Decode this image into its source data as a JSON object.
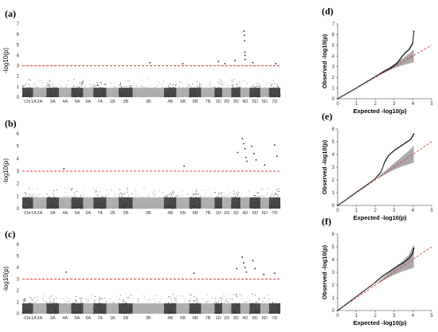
{
  "chart_data": [
    {
      "id": "a",
      "type": "scatter",
      "subtype": "manhattan",
      "panel_letter": "(a)",
      "ylabel": "-log10(p)",
      "ylim": [
        0,
        7
      ],
      "yticks": [
        0,
        1,
        2,
        3,
        4,
        5,
        6,
        7
      ],
      "threshold": 3,
      "threshold_color": "#e23a3a",
      "chromosomes": [
        "1A",
        "2A",
        "3A",
        "4A",
        "5A",
        "6A",
        "7A",
        "1B",
        "2B",
        "3B",
        "4B",
        "5B",
        "6B",
        "7B",
        "1D",
        "2D",
        "3D",
        "4D",
        "5D",
        "6D",
        "7D"
      ],
      "chromosome_label_prefix": "Chr",
      "color_dark": "#3a3a3a",
      "color_light": "#a9a9a9",
      "notable_points": [
        {
          "chr": "3B",
          "pos": 0.55,
          "value": 3.3
        },
        {
          "chr": "5B",
          "pos": 0.5,
          "value": 3.2
        },
        {
          "chr": "1D",
          "pos": 0.5,
          "value": 3.4
        },
        {
          "chr": "2D",
          "pos": 0.3,
          "value": 3.2
        },
        {
          "chr": "3D",
          "pos": 0.4,
          "value": 3.5
        },
        {
          "chr": "4D",
          "pos": 0.4,
          "value": 6.3
        },
        {
          "chr": "4D",
          "pos": 0.42,
          "value": 5.9
        },
        {
          "chr": "4D",
          "pos": 0.45,
          "value": 5.4
        },
        {
          "chr": "4D",
          "pos": 0.48,
          "value": 4.3
        },
        {
          "chr": "4D",
          "pos": 0.5,
          "value": 4.0
        },
        {
          "chr": "4D",
          "pos": 0.52,
          "value": 3.6
        },
        {
          "chr": "5D",
          "pos": 0.3,
          "value": 3.3
        },
        {
          "chr": "7D",
          "pos": 0.6,
          "value": 3.2
        }
      ]
    },
    {
      "id": "b",
      "type": "scatter",
      "subtype": "manhattan",
      "panel_letter": "(b)",
      "ylabel": "-log10(p)",
      "ylim": [
        0,
        6
      ],
      "yticks": [
        0,
        1,
        2,
        3,
        4,
        5,
        6
      ],
      "threshold": 3,
      "threshold_color": "#e23a3a",
      "chromosomes": [
        "1A",
        "2A",
        "3A",
        "4A",
        "5A",
        "6A",
        "7A",
        "1B",
        "2B",
        "3B",
        "4B",
        "5B",
        "6B",
        "7B",
        "1D",
        "2D",
        "3D",
        "4D",
        "5D",
        "6D",
        "7D"
      ],
      "chromosome_label_prefix": "Chr",
      "color_dark": "#3a3a3a",
      "color_light": "#a9a9a9",
      "notable_points": [
        {
          "chr": "4A",
          "pos": 0.4,
          "value": 3.2
        },
        {
          "chr": "5B",
          "pos": 0.6,
          "value": 3.4
        },
        {
          "chr": "3D",
          "pos": 0.7,
          "value": 4.5
        },
        {
          "chr": "4D",
          "pos": 0.2,
          "value": 5.6
        },
        {
          "chr": "4D",
          "pos": 0.35,
          "value": 5.2
        },
        {
          "chr": "4D",
          "pos": 0.5,
          "value": 4.8
        },
        {
          "chr": "4D",
          "pos": 0.6,
          "value": 4.1
        },
        {
          "chr": "4D",
          "pos": 0.7,
          "value": 3.8
        },
        {
          "chr": "5D",
          "pos": 0.2,
          "value": 5.0
        },
        {
          "chr": "5D",
          "pos": 0.4,
          "value": 4.4
        },
        {
          "chr": "5D",
          "pos": 0.6,
          "value": 3.9
        },
        {
          "chr": "6D",
          "pos": 0.5,
          "value": 3.5
        },
        {
          "chr": "7D",
          "pos": 0.5,
          "value": 5.1
        },
        {
          "chr": "7D",
          "pos": 0.7,
          "value": 4.2
        }
      ]
    },
    {
      "id": "c",
      "type": "scatter",
      "subtype": "manhattan",
      "panel_letter": "(c)",
      "ylabel": "-log10(p)",
      "ylim": [
        0,
        6
      ],
      "yticks": [
        0,
        1,
        2,
        3,
        4,
        5,
        6
      ],
      "threshold": 3,
      "threshold_color": "#e23a3a",
      "chromosomes": [
        "1A",
        "2A",
        "3A",
        "4A",
        "5A",
        "6A",
        "7A",
        "1B",
        "2B",
        "3B",
        "4B",
        "5B",
        "6B",
        "7B",
        "1D",
        "2D",
        "3D",
        "4D",
        "5D",
        "6D",
        "7D"
      ],
      "chromosome_label_prefix": "Chr",
      "color_dark": "#3a3a3a",
      "color_light": "#a9a9a9",
      "notable_points": [
        {
          "chr": "4A",
          "pos": 0.6,
          "value": 3.6
        },
        {
          "chr": "6B",
          "pos": 0.4,
          "value": 3.5
        },
        {
          "chr": "3D",
          "pos": 0.6,
          "value": 3.9
        },
        {
          "chr": "4D",
          "pos": 0.2,
          "value": 4.9
        },
        {
          "chr": "4D",
          "pos": 0.35,
          "value": 4.4
        },
        {
          "chr": "4D",
          "pos": 0.5,
          "value": 4.0
        },
        {
          "chr": "4D",
          "pos": 0.65,
          "value": 3.6
        },
        {
          "chr": "5D",
          "pos": 0.3,
          "value": 4.6
        },
        {
          "chr": "5D",
          "pos": 0.5,
          "value": 3.9
        },
        {
          "chr": "6D",
          "pos": 0.4,
          "value": 3.4
        },
        {
          "chr": "7D",
          "pos": 0.5,
          "value": 3.5
        }
      ]
    },
    {
      "id": "d",
      "type": "scatter",
      "subtype": "qq",
      "panel_letter": "(d)",
      "xlabel": "Expected -log10(p)",
      "ylabel": "Observed -log10(p)",
      "xlim": [
        0,
        5
      ],
      "ylim": [
        0,
        7
      ],
      "xticks": [
        0,
        1,
        2,
        3,
        4,
        5
      ],
      "yticks": [
        0,
        1,
        2,
        3,
        4,
        5,
        6,
        7
      ],
      "band_color": "#9a9a9a",
      "line_color": "#e23a3a",
      "curve": [
        [
          0,
          0
        ],
        [
          0.5,
          0.5
        ],
        [
          1,
          1
        ],
        [
          1.5,
          1.55
        ],
        [
          2,
          2.05
        ],
        [
          2.4,
          2.5
        ],
        [
          2.8,
          2.85
        ],
        [
          3.0,
          3.1
        ],
        [
          3.2,
          3.4
        ],
        [
          3.4,
          3.9
        ],
        [
          3.6,
          4.3
        ],
        [
          3.8,
          4.6
        ],
        [
          3.9,
          4.9
        ],
        [
          4.0,
          5.2
        ],
        [
          4.05,
          6.3
        ]
      ],
      "band_upper": [
        [
          2.2,
          2.3
        ],
        [
          2.6,
          2.8
        ],
        [
          3.0,
          3.2
        ],
        [
          3.4,
          3.7
        ],
        [
          3.8,
          4.2
        ],
        [
          4.05,
          4.6
        ]
      ],
      "band_lower": [
        [
          2.2,
          2.2
        ],
        [
          2.6,
          2.5
        ],
        [
          3.0,
          2.85
        ],
        [
          3.4,
          3.1
        ],
        [
          3.8,
          3.3
        ],
        [
          4.05,
          3.4
        ]
      ]
    },
    {
      "id": "e",
      "type": "scatter",
      "subtype": "qq",
      "panel_letter": "(e)",
      "xlabel": "Expected -log10(p)",
      "ylabel": "Observed -log10(p)",
      "xlim": [
        0,
        5
      ],
      "ylim": [
        0,
        6
      ],
      "xticks": [
        0,
        1,
        2,
        3,
        4,
        5
      ],
      "yticks": [
        0,
        1,
        2,
        3,
        4,
        5,
        6
      ],
      "band_color": "#9a9a9a",
      "line_color": "#e23a3a",
      "curve": [
        [
          0,
          0
        ],
        [
          0.5,
          0.5
        ],
        [
          1,
          1.05
        ],
        [
          1.5,
          1.55
        ],
        [
          2,
          2.1
        ],
        [
          2.3,
          2.6
        ],
        [
          2.5,
          3.4
        ],
        [
          2.7,
          3.9
        ],
        [
          3.0,
          4.3
        ],
        [
          3.3,
          4.6
        ],
        [
          3.6,
          4.9
        ],
        [
          3.9,
          5.2
        ],
        [
          4.05,
          5.6
        ]
      ],
      "band_upper": [
        [
          2.2,
          2.3
        ],
        [
          2.6,
          2.8
        ],
        [
          3.0,
          3.3
        ],
        [
          3.4,
          3.8
        ],
        [
          3.8,
          4.3
        ],
        [
          4.05,
          4.7
        ]
      ],
      "band_lower": [
        [
          2.2,
          2.15
        ],
        [
          2.6,
          2.5
        ],
        [
          3.0,
          2.8
        ],
        [
          3.4,
          3.05
        ],
        [
          3.8,
          3.25
        ],
        [
          4.05,
          3.35
        ]
      ]
    },
    {
      "id": "f",
      "type": "scatter",
      "subtype": "qq",
      "panel_letter": "(f)",
      "xlabel": "Expected -log10(p)",
      "ylabel": "Observed -log10(p)",
      "xlim": [
        0,
        5
      ],
      "ylim": [
        0,
        6
      ],
      "xticks": [
        0,
        1,
        2,
        3,
        4,
        5
      ],
      "yticks": [
        0,
        1,
        2,
        3,
        4,
        5,
        6
      ],
      "band_color": "#9a9a9a",
      "line_color": "#e23a3a",
      "curve": [
        [
          0,
          0
        ],
        [
          0.5,
          0.55
        ],
        [
          1,
          1.1
        ],
        [
          1.5,
          1.65
        ],
        [
          2,
          2.2
        ],
        [
          2.3,
          2.6
        ],
        [
          2.6,
          2.9
        ],
        [
          2.9,
          3.2
        ],
        [
          3.2,
          3.5
        ],
        [
          3.5,
          3.75
        ],
        [
          3.8,
          4.1
        ],
        [
          4.0,
          4.5
        ],
        [
          4.05,
          4.9
        ]
      ],
      "band_upper": [
        [
          2.2,
          2.3
        ],
        [
          2.6,
          2.8
        ],
        [
          3.0,
          3.3
        ],
        [
          3.4,
          3.8
        ],
        [
          3.8,
          4.4
        ],
        [
          4.05,
          5.2
        ]
      ],
      "band_lower": [
        [
          2.2,
          2.15
        ],
        [
          2.6,
          2.5
        ],
        [
          3.0,
          2.8
        ],
        [
          3.4,
          3.05
        ],
        [
          3.8,
          3.25
        ],
        [
          4.05,
          3.35
        ]
      ]
    }
  ]
}
